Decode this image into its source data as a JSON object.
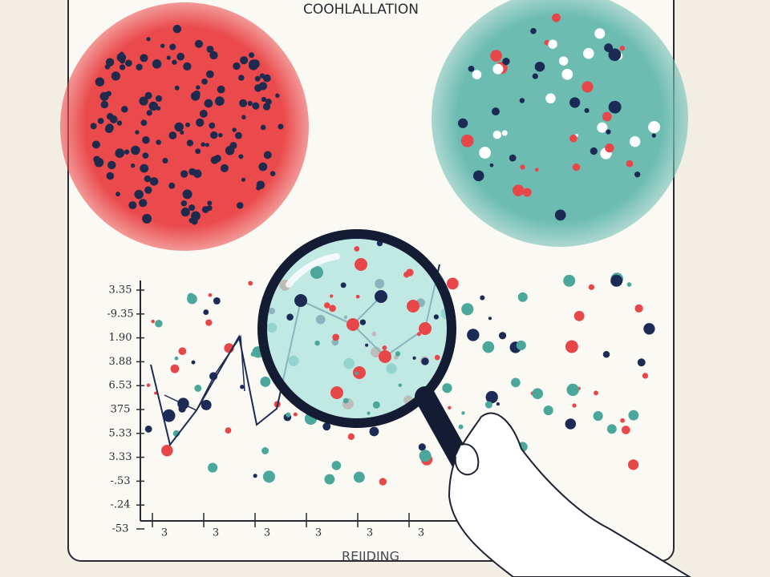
{
  "title": "COOHLALLATION",
  "y_axis_labels": [
    "3.35",
    "-9.35",
    "1.90",
    "3.88",
    "6.53",
    "375",
    "5.33",
    "3.33",
    "-.53",
    "-.24",
    "-53"
  ],
  "x_axis_labels": [
    "3",
    "3",
    "3",
    "3",
    "3",
    "3"
  ],
  "x_axis_title": "REIIDING"
}
